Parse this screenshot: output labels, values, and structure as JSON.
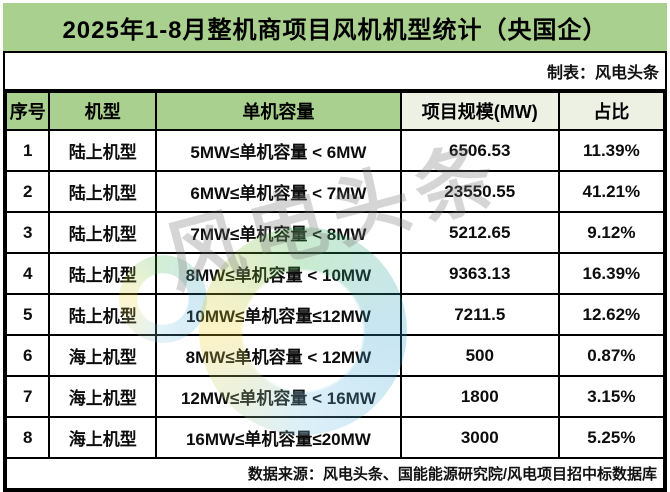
{
  "page": {
    "title": "2025年1-8月整机商项目风机机型统计（央国企）",
    "credit": "制表：风电头条",
    "source_note": "数据来源：风电头条、国能能源研究院/风电项目招中标数据库",
    "watermark_text": "风电头条"
  },
  "colors": {
    "title_bg": "#a9d08e",
    "header_green_bg": "#a9d08e",
    "header_pale_bg": "#edf1e3",
    "grid_border": "#000000",
    "cell_bg": "#ffffff",
    "text": "#111111"
  },
  "chart_data": {
    "type": "table",
    "title": "2025年1-8月整机商项目风机机型统计（央国企）",
    "columns": [
      "序号",
      "机型",
      "单机容量",
      "项目规模(MW)",
      "占比"
    ],
    "rows": [
      [
        "1",
        "陆上机型",
        "5MW≤单机容量 < 6MW",
        "6506.53",
        "11.39%"
      ],
      [
        "2",
        "陆上机型",
        "6MW≤单机容量 < 7MW",
        "23550.55",
        "41.21%"
      ],
      [
        "3",
        "陆上机型",
        "7MW≤单机容量 < 8MW",
        "5212.65",
        "9.12%"
      ],
      [
        "4",
        "陆上机型",
        "8MW≤单机容量 < 10MW",
        "9363.13",
        "16.39%"
      ],
      [
        "5",
        "陆上机型",
        "10MW≤单机容量≤12MW",
        "7211.5",
        "12.62%"
      ],
      [
        "6",
        "海上机型",
        "8MW≤单机容量 < 12MW",
        "500",
        "0.87%"
      ],
      [
        "7",
        "海上机型",
        "12MW≤单机容量 < 16MW",
        "1800",
        "3.15%"
      ],
      [
        "8",
        "海上机型",
        "16MW≤单机容量≤20MW",
        "3000",
        "5.25%"
      ]
    ],
    "column_keys": [
      "index",
      "model-type",
      "capacity-range",
      "project-scale-mw",
      "share-percent"
    ],
    "project_scale_total_unit": "MW",
    "source": "数据来源：风电头条、国能能源研究院/风电项目招中标数据库"
  }
}
